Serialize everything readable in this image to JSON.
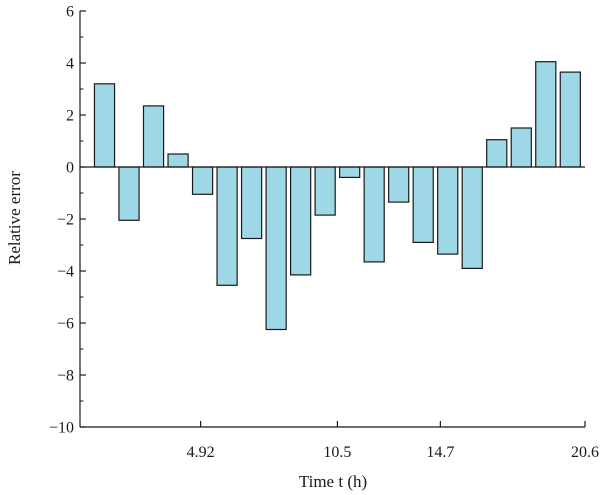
{
  "chart_data": {
    "type": "bar",
    "title": "",
    "xlabel": "Time t (h)",
    "ylabel": "Relative error",
    "ylim": [
      -10,
      6
    ],
    "yticks": [
      6,
      4,
      2,
      0,
      -2,
      -4,
      -6,
      -8,
      -10
    ],
    "yticklabels": [
      "6",
      "4",
      "2",
      "0",
      "−2",
      "−4",
      "−6",
      "−8",
      "−10"
    ],
    "xlim": [
      0,
      20.6
    ],
    "xticks": [
      4.92,
      10.5,
      14.7,
      20.6
    ],
    "xticklabels": [
      "4.92",
      "10.5",
      "14.7",
      "20.6"
    ],
    "bar_color": "#9ed7e6",
    "grid": false,
    "x": [
      1.0,
      2.0,
      3.0,
      4.0,
      5.0,
      6.0,
      7.0,
      8.0,
      9.0,
      10.0,
      11.0,
      12.0,
      13.0,
      14.0,
      15.0,
      16.0,
      17.0,
      18.0,
      19.0,
      20.0
    ],
    "values": [
      3.2,
      -2.05,
      2.35,
      0.5,
      -1.05,
      -4.55,
      -2.75,
      -6.25,
      -4.15,
      -1.85,
      -0.4,
      -3.65,
      -1.35,
      -2.9,
      -3.35,
      -3.9,
      1.05,
      1.5,
      4.05,
      3.65
    ]
  }
}
